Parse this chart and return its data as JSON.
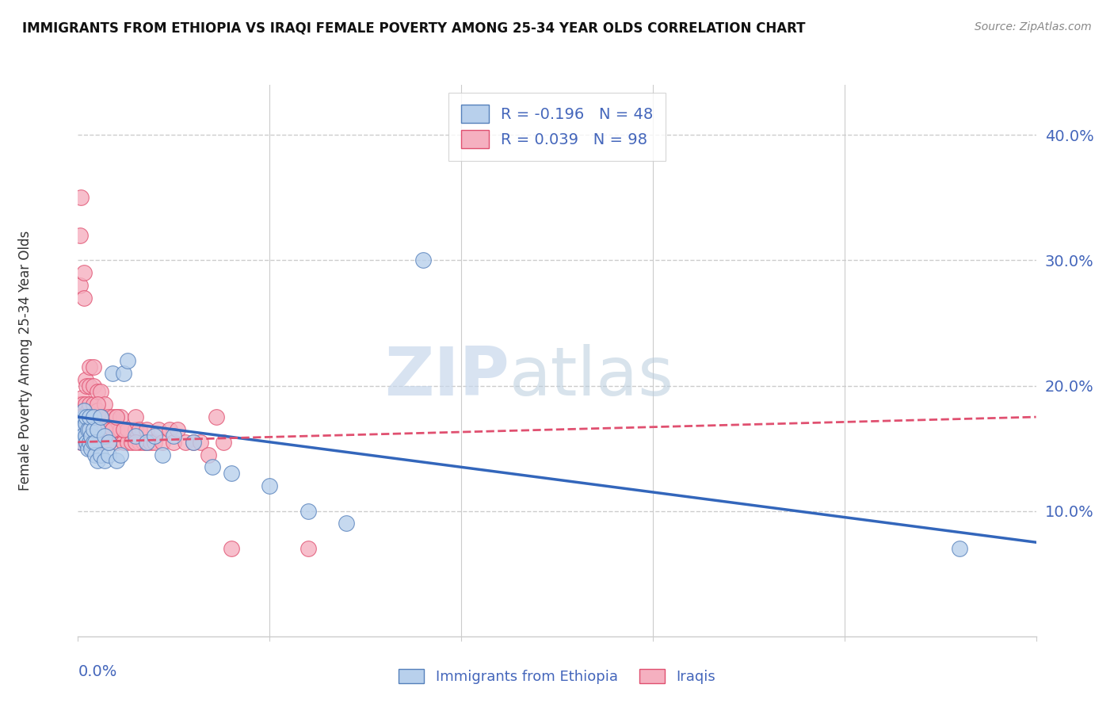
{
  "title": "IMMIGRANTS FROM ETHIOPIA VS IRAQI FEMALE POVERTY AMONG 25-34 YEAR OLDS CORRELATION CHART",
  "source": "Source: ZipAtlas.com",
  "ylabel": "Female Poverty Among 25-34 Year Olds",
  "yticks": [
    0.0,
    0.1,
    0.2,
    0.3,
    0.4
  ],
  "ytick_labels": [
    "",
    "10.0%",
    "20.0%",
    "30.0%",
    "40.0%"
  ],
  "xlim": [
    0.0,
    0.25
  ],
  "ylim": [
    0.0,
    0.44
  ],
  "legend_label1": "Immigrants from Ethiopia",
  "legend_label2": "Iraqis",
  "legend_r1": "R = -0.196",
  "legend_n1": "N = 48",
  "legend_r2": "R = 0.039",
  "legend_n2": "N = 98",
  "ethiopia_color": "#b8d0ec",
  "iraq_color": "#f5b0c0",
  "ethiopia_edge": "#5580bb",
  "iraq_edge": "#e05070",
  "trend_ethiopia_color": "#3366bb",
  "trend_iraq_color": "#e05070",
  "watermark_zip": "ZIP",
  "watermark_atlas": "atlas",
  "watermark_color": "#ccdaee",
  "grid_color": "#cccccc",
  "axis_color": "#4466bb",
  "title_color": "#111111",
  "ethiopia_x": [
    0.0008,
    0.001,
    0.001,
    0.0012,
    0.0015,
    0.0015,
    0.002,
    0.002,
    0.0022,
    0.0022,
    0.0025,
    0.0025,
    0.003,
    0.003,
    0.003,
    0.0035,
    0.0035,
    0.004,
    0.004,
    0.004,
    0.0045,
    0.0045,
    0.005,
    0.005,
    0.006,
    0.006,
    0.007,
    0.007,
    0.008,
    0.008,
    0.009,
    0.01,
    0.011,
    0.012,
    0.013,
    0.015,
    0.018,
    0.02,
    0.022,
    0.025,
    0.03,
    0.035,
    0.04,
    0.05,
    0.06,
    0.07,
    0.09,
    0.23
  ],
  "ethiopia_y": [
    0.165,
    0.155,
    0.17,
    0.16,
    0.175,
    0.18,
    0.16,
    0.17,
    0.155,
    0.175,
    0.15,
    0.165,
    0.155,
    0.165,
    0.175,
    0.15,
    0.16,
    0.155,
    0.165,
    0.175,
    0.145,
    0.155,
    0.14,
    0.165,
    0.145,
    0.175,
    0.14,
    0.16,
    0.145,
    0.155,
    0.21,
    0.14,
    0.145,
    0.21,
    0.22,
    0.16,
    0.155,
    0.16,
    0.145,
    0.16,
    0.155,
    0.135,
    0.13,
    0.12,
    0.1,
    0.09,
    0.3,
    0.07
  ],
  "iraq_x": [
    0.0003,
    0.0005,
    0.0006,
    0.0007,
    0.0008,
    0.001,
    0.001,
    0.0012,
    0.0012,
    0.0015,
    0.0015,
    0.0015,
    0.002,
    0.002,
    0.002,
    0.002,
    0.0022,
    0.0022,
    0.0025,
    0.0025,
    0.003,
    0.003,
    0.003,
    0.003,
    0.003,
    0.0035,
    0.0035,
    0.004,
    0.004,
    0.004,
    0.004,
    0.004,
    0.0045,
    0.005,
    0.005,
    0.005,
    0.005,
    0.006,
    0.006,
    0.006,
    0.006,
    0.007,
    0.007,
    0.007,
    0.008,
    0.008,
    0.008,
    0.009,
    0.009,
    0.01,
    0.01,
    0.01,
    0.011,
    0.011,
    0.012,
    0.012,
    0.013,
    0.013,
    0.014,
    0.015,
    0.015,
    0.016,
    0.016,
    0.017,
    0.018,
    0.018,
    0.019,
    0.02,
    0.021,
    0.022,
    0.024,
    0.025,
    0.026,
    0.028,
    0.03,
    0.032,
    0.034,
    0.036,
    0.038,
    0.04,
    0.0004,
    0.0006,
    0.0008,
    0.001,
    0.0012,
    0.0015,
    0.002,
    0.003,
    0.004,
    0.005,
    0.006,
    0.007,
    0.008,
    0.009,
    0.01,
    0.012,
    0.015,
    0.06
  ],
  "iraq_y": [
    0.185,
    0.32,
    0.28,
    0.18,
    0.35,
    0.175,
    0.19,
    0.165,
    0.185,
    0.175,
    0.27,
    0.29,
    0.155,
    0.17,
    0.185,
    0.205,
    0.175,
    0.2,
    0.165,
    0.18,
    0.155,
    0.17,
    0.185,
    0.2,
    0.215,
    0.165,
    0.175,
    0.155,
    0.17,
    0.185,
    0.2,
    0.215,
    0.175,
    0.155,
    0.165,
    0.18,
    0.195,
    0.155,
    0.165,
    0.175,
    0.195,
    0.165,
    0.175,
    0.185,
    0.155,
    0.165,
    0.175,
    0.165,
    0.175,
    0.155,
    0.165,
    0.175,
    0.165,
    0.175,
    0.155,
    0.165,
    0.155,
    0.165,
    0.155,
    0.165,
    0.175,
    0.155,
    0.165,
    0.155,
    0.155,
    0.165,
    0.155,
    0.155,
    0.165,
    0.155,
    0.165,
    0.155,
    0.165,
    0.155,
    0.155,
    0.155,
    0.145,
    0.175,
    0.155,
    0.07,
    0.165,
    0.175,
    0.155,
    0.165,
    0.155,
    0.165,
    0.155,
    0.165,
    0.175,
    0.185,
    0.175,
    0.165,
    0.155,
    0.165,
    0.175,
    0.165,
    0.155,
    0.07
  ],
  "trend_eth_x0": 0.0,
  "trend_eth_y0": 0.175,
  "trend_eth_x1": 0.25,
  "trend_eth_y1": 0.075,
  "trend_iraq_x0": 0.0,
  "trend_iraq_y0": 0.155,
  "trend_iraq_x1": 0.25,
  "trend_iraq_y1": 0.175
}
